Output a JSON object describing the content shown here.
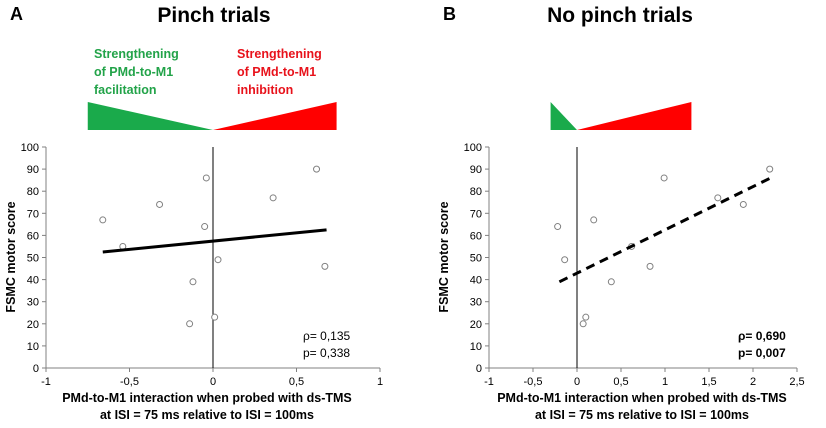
{
  "colors": {
    "green": "#1aaa4b",
    "red": "#ff0000",
    "point": "#808080",
    "axis": "#808080"
  },
  "chart_data": [
    {
      "type": "scatter",
      "panel_letter": "A",
      "title": "Pinch trials",
      "xlabel_line1": "PMd-to-M1 interaction when probed with ds-TMS",
      "xlabel_line2": "at ISI = 75 ms relative to ISI = 100ms",
      "ylabel": "FSMC motor score",
      "xlim": [
        -1,
        1
      ],
      "ylim": [
        0,
        100
      ],
      "xticks": [
        -1,
        -0.5,
        0,
        0.5,
        1
      ],
      "xtick_labels": [
        "-1",
        "-0,5",
        "0",
        "0,5",
        "1"
      ],
      "yticks": [
        0,
        10,
        20,
        30,
        40,
        50,
        60,
        70,
        80,
        90,
        100
      ],
      "ytick_labels": [
        "0",
        "10",
        "20",
        "30",
        "40",
        "50",
        "60",
        "70",
        "80",
        "90",
        "100"
      ],
      "points": [
        {
          "x": -0.66,
          "y": 67
        },
        {
          "x": -0.54,
          "y": 55
        },
        {
          "x": -0.32,
          "y": 74
        },
        {
          "x": -0.14,
          "y": 20
        },
        {
          "x": -0.12,
          "y": 39
        },
        {
          "x": -0.05,
          "y": 64
        },
        {
          "x": -0.04,
          "y": 86
        },
        {
          "x": 0.01,
          "y": 23
        },
        {
          "x": 0.03,
          "y": 49
        },
        {
          "x": 0.36,
          "y": 77
        },
        {
          "x": 0.62,
          "y": 90
        },
        {
          "x": 0.67,
          "y": 46
        }
      ],
      "fit": {
        "x1": -0.66,
        "y1": 52.5,
        "x2": 0.68,
        "y2": 62.5,
        "style": "solid"
      },
      "stats": {
        "rho": "ρ= 0,135",
        "p": "p= 0,338",
        "bold": false
      },
      "legend": {
        "left_text": [
          "Strengthening",
          "of PMd-to-M1",
          "facilitation"
        ],
        "right_text": [
          "Strengthening",
          "of PMd-to-M1",
          "inhibition"
        ],
        "wedge_x_range": [
          -0.75,
          0.74
        ]
      }
    },
    {
      "type": "scatter",
      "panel_letter": "B",
      "title": "No pinch trials",
      "xlabel_line1": "PMd-to-M1 interaction when probed with ds-TMS",
      "xlabel_line2": "at ISI = 75 ms relative to ISI = 100ms",
      "ylabel": "FSMC motor score",
      "xlim": [
        -1,
        2.5
      ],
      "ylim": [
        0,
        100
      ],
      "xticks": [
        -1,
        -0.5,
        0,
        0.5,
        1,
        1.5,
        2,
        2.5
      ],
      "xtick_labels": [
        "-1",
        "-0,5",
        "0",
        "0,5",
        "1",
        "1,5",
        "2",
        "2,5"
      ],
      "yticks": [
        0,
        10,
        20,
        30,
        40,
        50,
        60,
        70,
        80,
        90,
        100
      ],
      "ytick_labels": [
        "0",
        "10",
        "20",
        "30",
        "40",
        "50",
        "60",
        "70",
        "80",
        "90",
        "100"
      ],
      "points": [
        {
          "x": -0.22,
          "y": 64
        },
        {
          "x": -0.14,
          "y": 49
        },
        {
          "x": 0.07,
          "y": 20
        },
        {
          "x": 0.1,
          "y": 23
        },
        {
          "x": 0.19,
          "y": 67
        },
        {
          "x": 0.39,
          "y": 39
        },
        {
          "x": 0.62,
          "y": 55
        },
        {
          "x": 0.83,
          "y": 46
        },
        {
          "x": 0.99,
          "y": 86
        },
        {
          "x": 1.6,
          "y": 77
        },
        {
          "x": 1.89,
          "y": 74
        },
        {
          "x": 2.19,
          "y": 90
        }
      ],
      "fit": {
        "x1": -0.2,
        "y1": 39,
        "x2": 2.2,
        "y2": 86,
        "style": "dashed"
      },
      "stats": {
        "rho": "ρ= 0,690",
        "p": "p= 0,007",
        "bold": true
      },
      "legend": {
        "left_text": [],
        "right_text": [],
        "wedge_x_range": [
          -0.3,
          1.3
        ]
      }
    }
  ]
}
